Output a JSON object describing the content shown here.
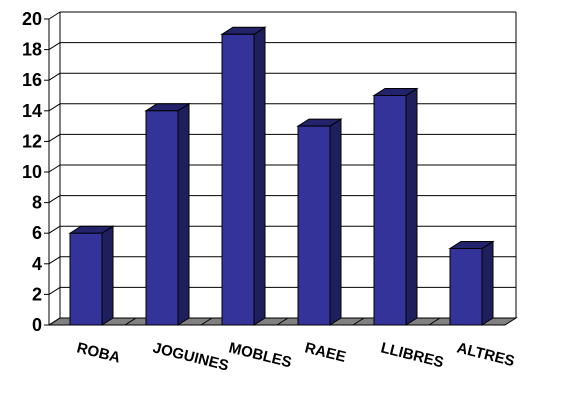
{
  "chart_data": {
    "type": "bar",
    "categories": [
      "ROBA",
      "JOGUINES",
      "MOBLES",
      "RAEE",
      "LLIBRES",
      "ALTRES"
    ],
    "values": [
      6,
      14,
      19,
      13,
      15,
      5
    ],
    "ylim": [
      0,
      20
    ],
    "yticks": [
      0,
      2,
      4,
      6,
      8,
      10,
      12,
      14,
      16,
      18,
      20
    ],
    "grid": true,
    "style": "3d-column",
    "colors": {
      "front": "#333399",
      "side": "#1f1f5e",
      "top": "#23236b",
      "floor": "#808080",
      "grid": "#000000"
    }
  }
}
